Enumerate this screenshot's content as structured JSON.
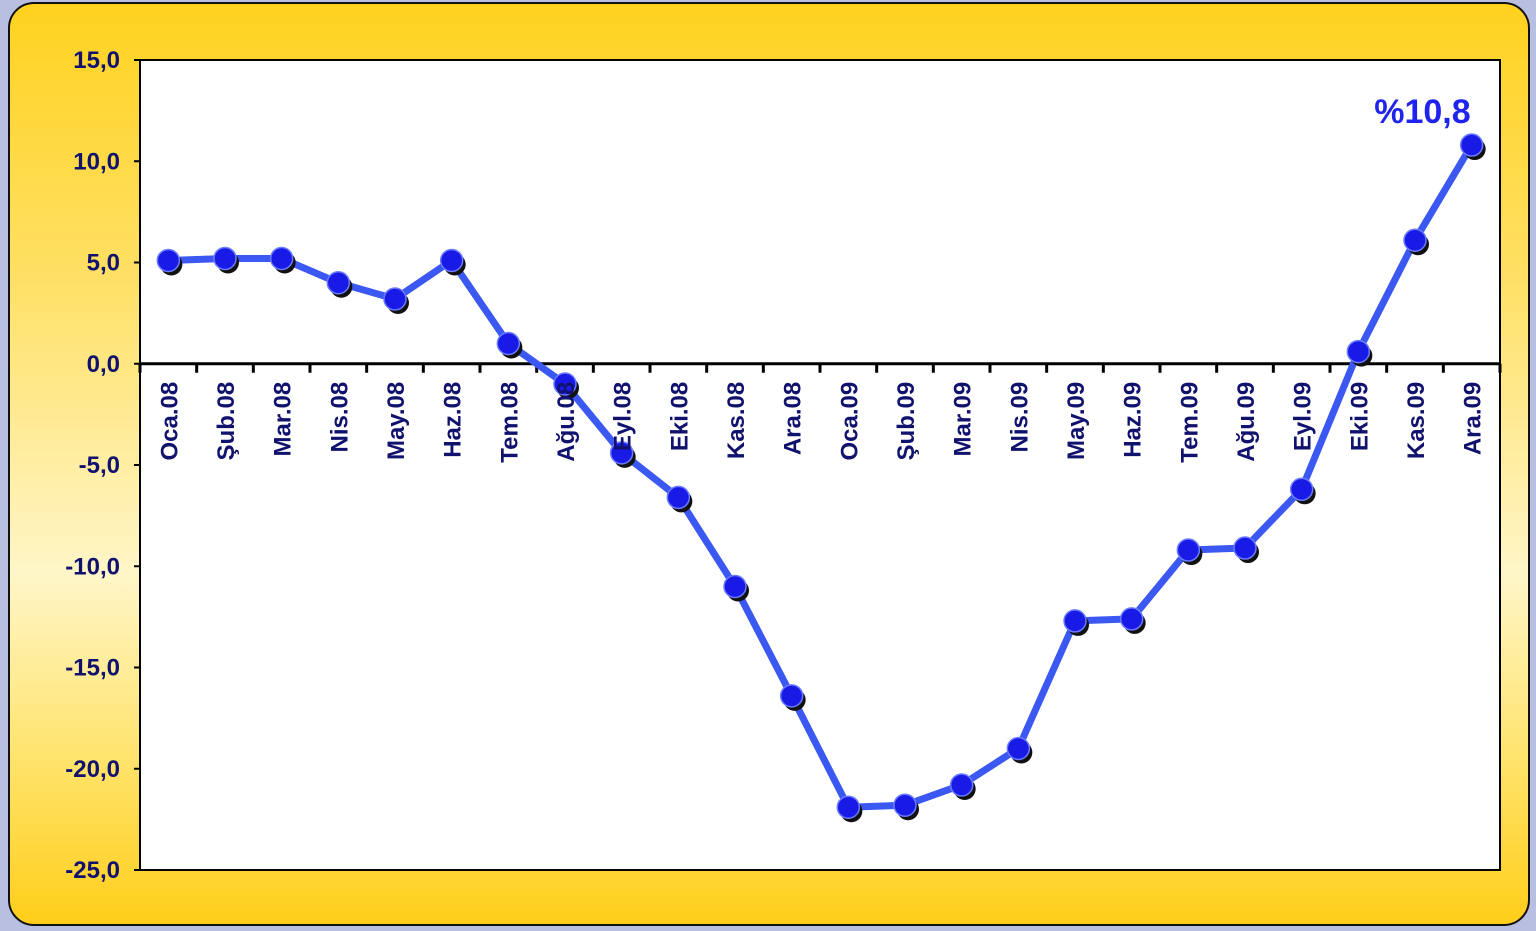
{
  "chart_data": {
    "type": "line",
    "categories": [
      "Oca.08",
      "Şub.08",
      "Mar.08",
      "Nis.08",
      "May.08",
      "Haz.08",
      "Tem.08",
      "Ağu.08",
      "Eyl.08",
      "Eki.08",
      "Kas.08",
      "Ara.08",
      "Oca.09",
      "Şub.09",
      "Mar.09",
      "Nis.09",
      "May.09",
      "Haz.09",
      "Tem.09",
      "Ağu.09",
      "Eyl.09",
      "Eki.09",
      "Kas.09",
      "Ara.09"
    ],
    "series": [
      {
        "values": [
          5.1,
          5.2,
          5.2,
          4.0,
          3.2,
          5.1,
          1.0,
          -1.0,
          -4.4,
          -6.6,
          -11.0,
          -16.4,
          -21.9,
          -21.8,
          -20.8,
          -19.0,
          -12.7,
          -12.6,
          -9.2,
          -9.1,
          -6.2,
          0.6,
          6.1,
          10.8
        ],
        "color": "#3b58f2"
      }
    ],
    "yticks": [
      "15,0",
      "10,0",
      "5,0",
      "0,0",
      "-5,0",
      "-10,0",
      "-15,0",
      "-20,0",
      "-25,0"
    ],
    "ylim": [
      -25,
      15
    ],
    "annotation": {
      "text": "%10,8",
      "index": 23
    },
    "grid": false,
    "legend": "none",
    "colors": {
      "line": "#3b58f2",
      "marker": "#1a1ae6",
      "shadow": "#111111",
      "tick_text": "#11116e",
      "annotation": "#1f23ee"
    }
  }
}
